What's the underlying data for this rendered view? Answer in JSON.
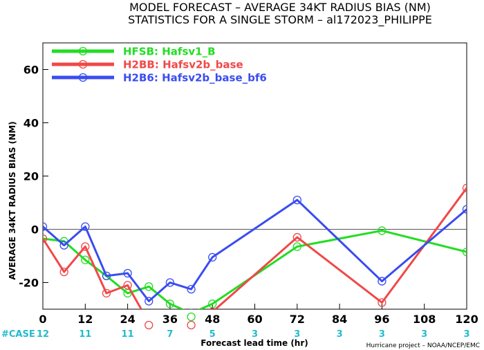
{
  "chart_data": {
    "type": "line",
    "title": "MODEL FORECAST – AVERAGE 34KT RADIUS BIAS (NM)",
    "subtitle": "STATISTICS FOR A SINGLE STORM – al172023_PHILIPPE",
    "xlabel": "Forecast lead time (hr)",
    "ylabel": "AVERAGE 34KT RADIUS BIAS (NM)",
    "xlim": [
      0,
      120
    ],
    "ylim": [
      -30,
      70
    ],
    "xticks": [
      0,
      12,
      24,
      36,
      48,
      60,
      72,
      84,
      96,
      108,
      120
    ],
    "yticks": [
      -20,
      0,
      20,
      40,
      60
    ],
    "zero_line": true,
    "grid": false,
    "legend_position": "top-left",
    "credit": "Hurricane project – NOAA/NCEP/EMC",
    "series": [
      {
        "name": "HFSB: Hafsv1_B",
        "color": "#22dd22",
        "x": [
          0,
          6,
          12,
          18,
          24,
          30,
          36,
          42,
          48,
          72,
          96,
          120
        ],
        "y": [
          -3.5,
          -4.5,
          -11.5,
          -17.5,
          -24,
          -21.5,
          -28,
          -31.5,
          -28,
          -6.5,
          -0.5,
          -8.5
        ]
      },
      {
        "name": "H2BB: Hafsv2b_base",
        "color": "#f04848",
        "x": [
          0,
          6,
          12,
          18,
          24,
          30,
          42,
          48,
          72,
          96,
          120
        ],
        "y": [
          -3.5,
          -16,
          -6.5,
          -24,
          -21,
          -35,
          -35,
          -31,
          -3,
          -27.5,
          15.5
        ]
      },
      {
        "name": "H2B6: Hafsv2b_base_bf6",
        "color": "#3a4cf0",
        "x": [
          0,
          6,
          12,
          18,
          24,
          30,
          36,
          42,
          48,
          72,
          96,
          120
        ],
        "y": [
          1,
          -6,
          1,
          -17.5,
          -16.5,
          -27,
          -20,
          -22.5,
          -10.5,
          11,
          -19.5,
          7.5
        ]
      }
    ],
    "cases": {
      "label": "#CASE",
      "color": "#22bbcc",
      "x": [
        0,
        12,
        24,
        36,
        48,
        60,
        72,
        84,
        96,
        108,
        120
      ],
      "values": [
        "12",
        "11",
        "11",
        "7",
        "5",
        "3",
        "3",
        "3",
        "3",
        "3",
        "3"
      ]
    },
    "below_axis_markers": [
      {
        "x": 30,
        "series": 1
      },
      {
        "x": 42,
        "series": 0
      },
      {
        "x": 42,
        "series": 1
      }
    ]
  }
}
